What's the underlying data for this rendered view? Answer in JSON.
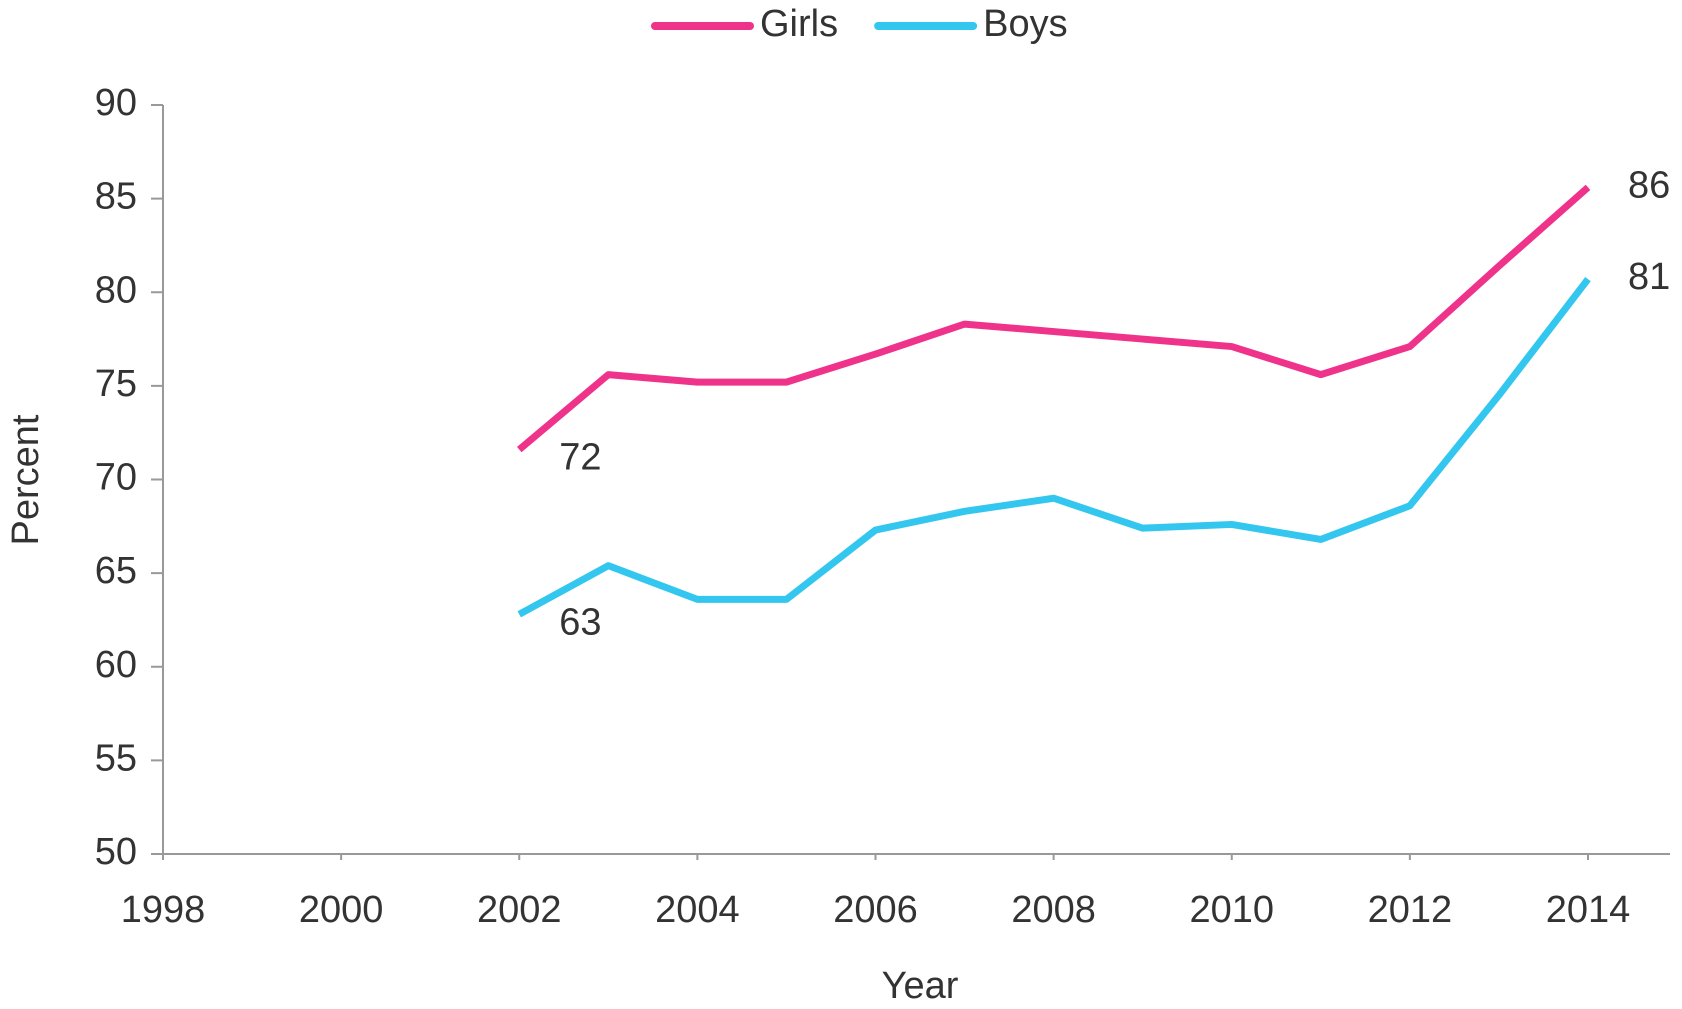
{
  "chart_data": {
    "type": "line",
    "x": [
      2002,
      2003,
      2004,
      2005,
      2006,
      2007,
      2008,
      2009,
      2010,
      2011,
      2012,
      2013,
      2014
    ],
    "series": [
      {
        "name": "Girls",
        "color": "#f0338a",
        "values": [
          71.6,
          75.6,
          75.2,
          75.2,
          76.7,
          78.3,
          77.9,
          77.5,
          77.1,
          75.6,
          77.1,
          81.4,
          85.6
        ],
        "value_labels": [
          "72",
          null,
          null,
          null,
          null,
          null,
          null,
          null,
          null,
          null,
          null,
          null,
          "86"
        ]
      },
      {
        "name": "Boys",
        "color": "#33c7ef",
        "values": [
          62.8,
          65.4,
          63.6,
          63.6,
          67.3,
          68.3,
          69.0,
          67.4,
          67.6,
          66.8,
          68.6,
          74.5,
          80.7
        ],
        "value_labels": [
          "63",
          null,
          null,
          null,
          null,
          null,
          null,
          null,
          null,
          null,
          null,
          null,
          "81"
        ]
      }
    ],
    "xlabel": "Year",
    "ylabel": "Percent",
    "xlim": [
      1998,
      2014
    ],
    "xticks": [
      1998,
      2000,
      2002,
      2004,
      2006,
      2008,
      2010,
      2012,
      2014
    ],
    "ylim": [
      50,
      90
    ],
    "yticks": [
      50,
      55,
      60,
      65,
      70,
      75,
      80,
      85,
      90
    ],
    "legend": "top"
  }
}
